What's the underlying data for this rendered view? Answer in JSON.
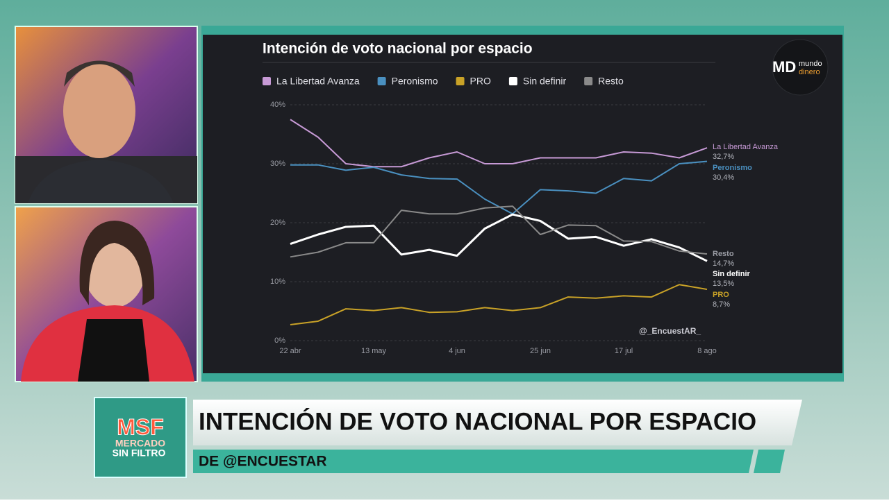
{
  "chart_data": {
    "type": "line",
    "title": "Intención de voto nacional por espacio",
    "watermark": "@_EncuestAR_",
    "categories": [
      "22 abr",
      null,
      null,
      "13 may",
      null,
      null,
      "4 jun",
      null,
      null,
      "25 jun",
      null,
      null,
      "17 jul",
      null,
      null,
      "8 ago"
    ],
    "ylim": [
      0,
      40
    ],
    "yticks": [
      {
        "value": 0,
        "label": "0%"
      },
      {
        "value": 10,
        "label": "10%"
      },
      {
        "value": 20,
        "label": "20%"
      },
      {
        "value": 30,
        "label": "30%"
      },
      {
        "value": 40,
        "label": "40%"
      }
    ],
    "grid": true,
    "legend": "top",
    "series": [
      {
        "name": "La Libertad Avanza",
        "color": "#c79ad6",
        "values": [
          37.5,
          34.5,
          30,
          29.5,
          29.5,
          31,
          32,
          30,
          30,
          31,
          31,
          31,
          32,
          31.8,
          31,
          32.7
        ],
        "value_labels": [
          null,
          null,
          null,
          null,
          null,
          null,
          null,
          null,
          null,
          null,
          null,
          null,
          null,
          null,
          null,
          "32,7%"
        ]
      },
      {
        "name": "Peronismo",
        "color": "#4a90c0",
        "values": [
          29.8,
          29.8,
          28.9,
          29.4,
          28.1,
          27.5,
          27.4,
          24,
          21.5,
          25.6,
          25.4,
          25,
          27.5,
          27.1,
          30,
          30.4
        ],
        "value_labels": [
          null,
          null,
          null,
          null,
          null,
          null,
          null,
          null,
          null,
          null,
          null,
          null,
          null,
          null,
          null,
          "30,4%"
        ]
      },
      {
        "name": "PRO",
        "color": "#c9a227",
        "values": [
          2.7,
          3.3,
          5.4,
          5.1,
          5.6,
          4.8,
          4.9,
          5.6,
          5.1,
          5.6,
          7.4,
          7.2,
          7.6,
          7.4,
          9.5,
          8.7
        ],
        "value_labels": [
          null,
          null,
          null,
          null,
          null,
          null,
          null,
          null,
          null,
          null,
          null,
          null,
          null,
          null,
          null,
          "8,7%"
        ]
      },
      {
        "name": "Sin definir",
        "color": "#ffffff",
        "values": [
          16.4,
          18,
          19.3,
          19.5,
          14.6,
          15.4,
          14.4,
          19,
          21.4,
          20.3,
          17.3,
          17.6,
          16.1,
          17.2,
          15.8,
          13.5
        ],
        "value_labels": [
          null,
          null,
          null,
          null,
          null,
          null,
          null,
          null,
          null,
          null,
          null,
          null,
          null,
          null,
          null,
          "13,5%"
        ]
      },
      {
        "name": "Resto",
        "color": "#8a8a8a",
        "values": [
          14.2,
          15,
          16.6,
          16.6,
          22.1,
          21.5,
          21.5,
          22.5,
          22.8,
          18,
          19.6,
          19.5,
          16.9,
          16.8,
          15.2,
          14.7
        ],
        "value_labels": [
          null,
          null,
          null,
          null,
          null,
          null,
          null,
          null,
          null,
          null,
          null,
          null,
          null,
          null,
          null,
          "14,7%"
        ]
      }
    ]
  },
  "logo": {
    "line1": "mundo",
    "line2": "dinero"
  },
  "lower_third": {
    "headline": "INTENCIÓN DE VOTO NACIONAL POR ESPACIO",
    "source": "DE @ENCUESTAR",
    "brand": {
      "short": "MSF",
      "line1": "MERCADO",
      "line2": "SIN FILTRO"
    }
  }
}
